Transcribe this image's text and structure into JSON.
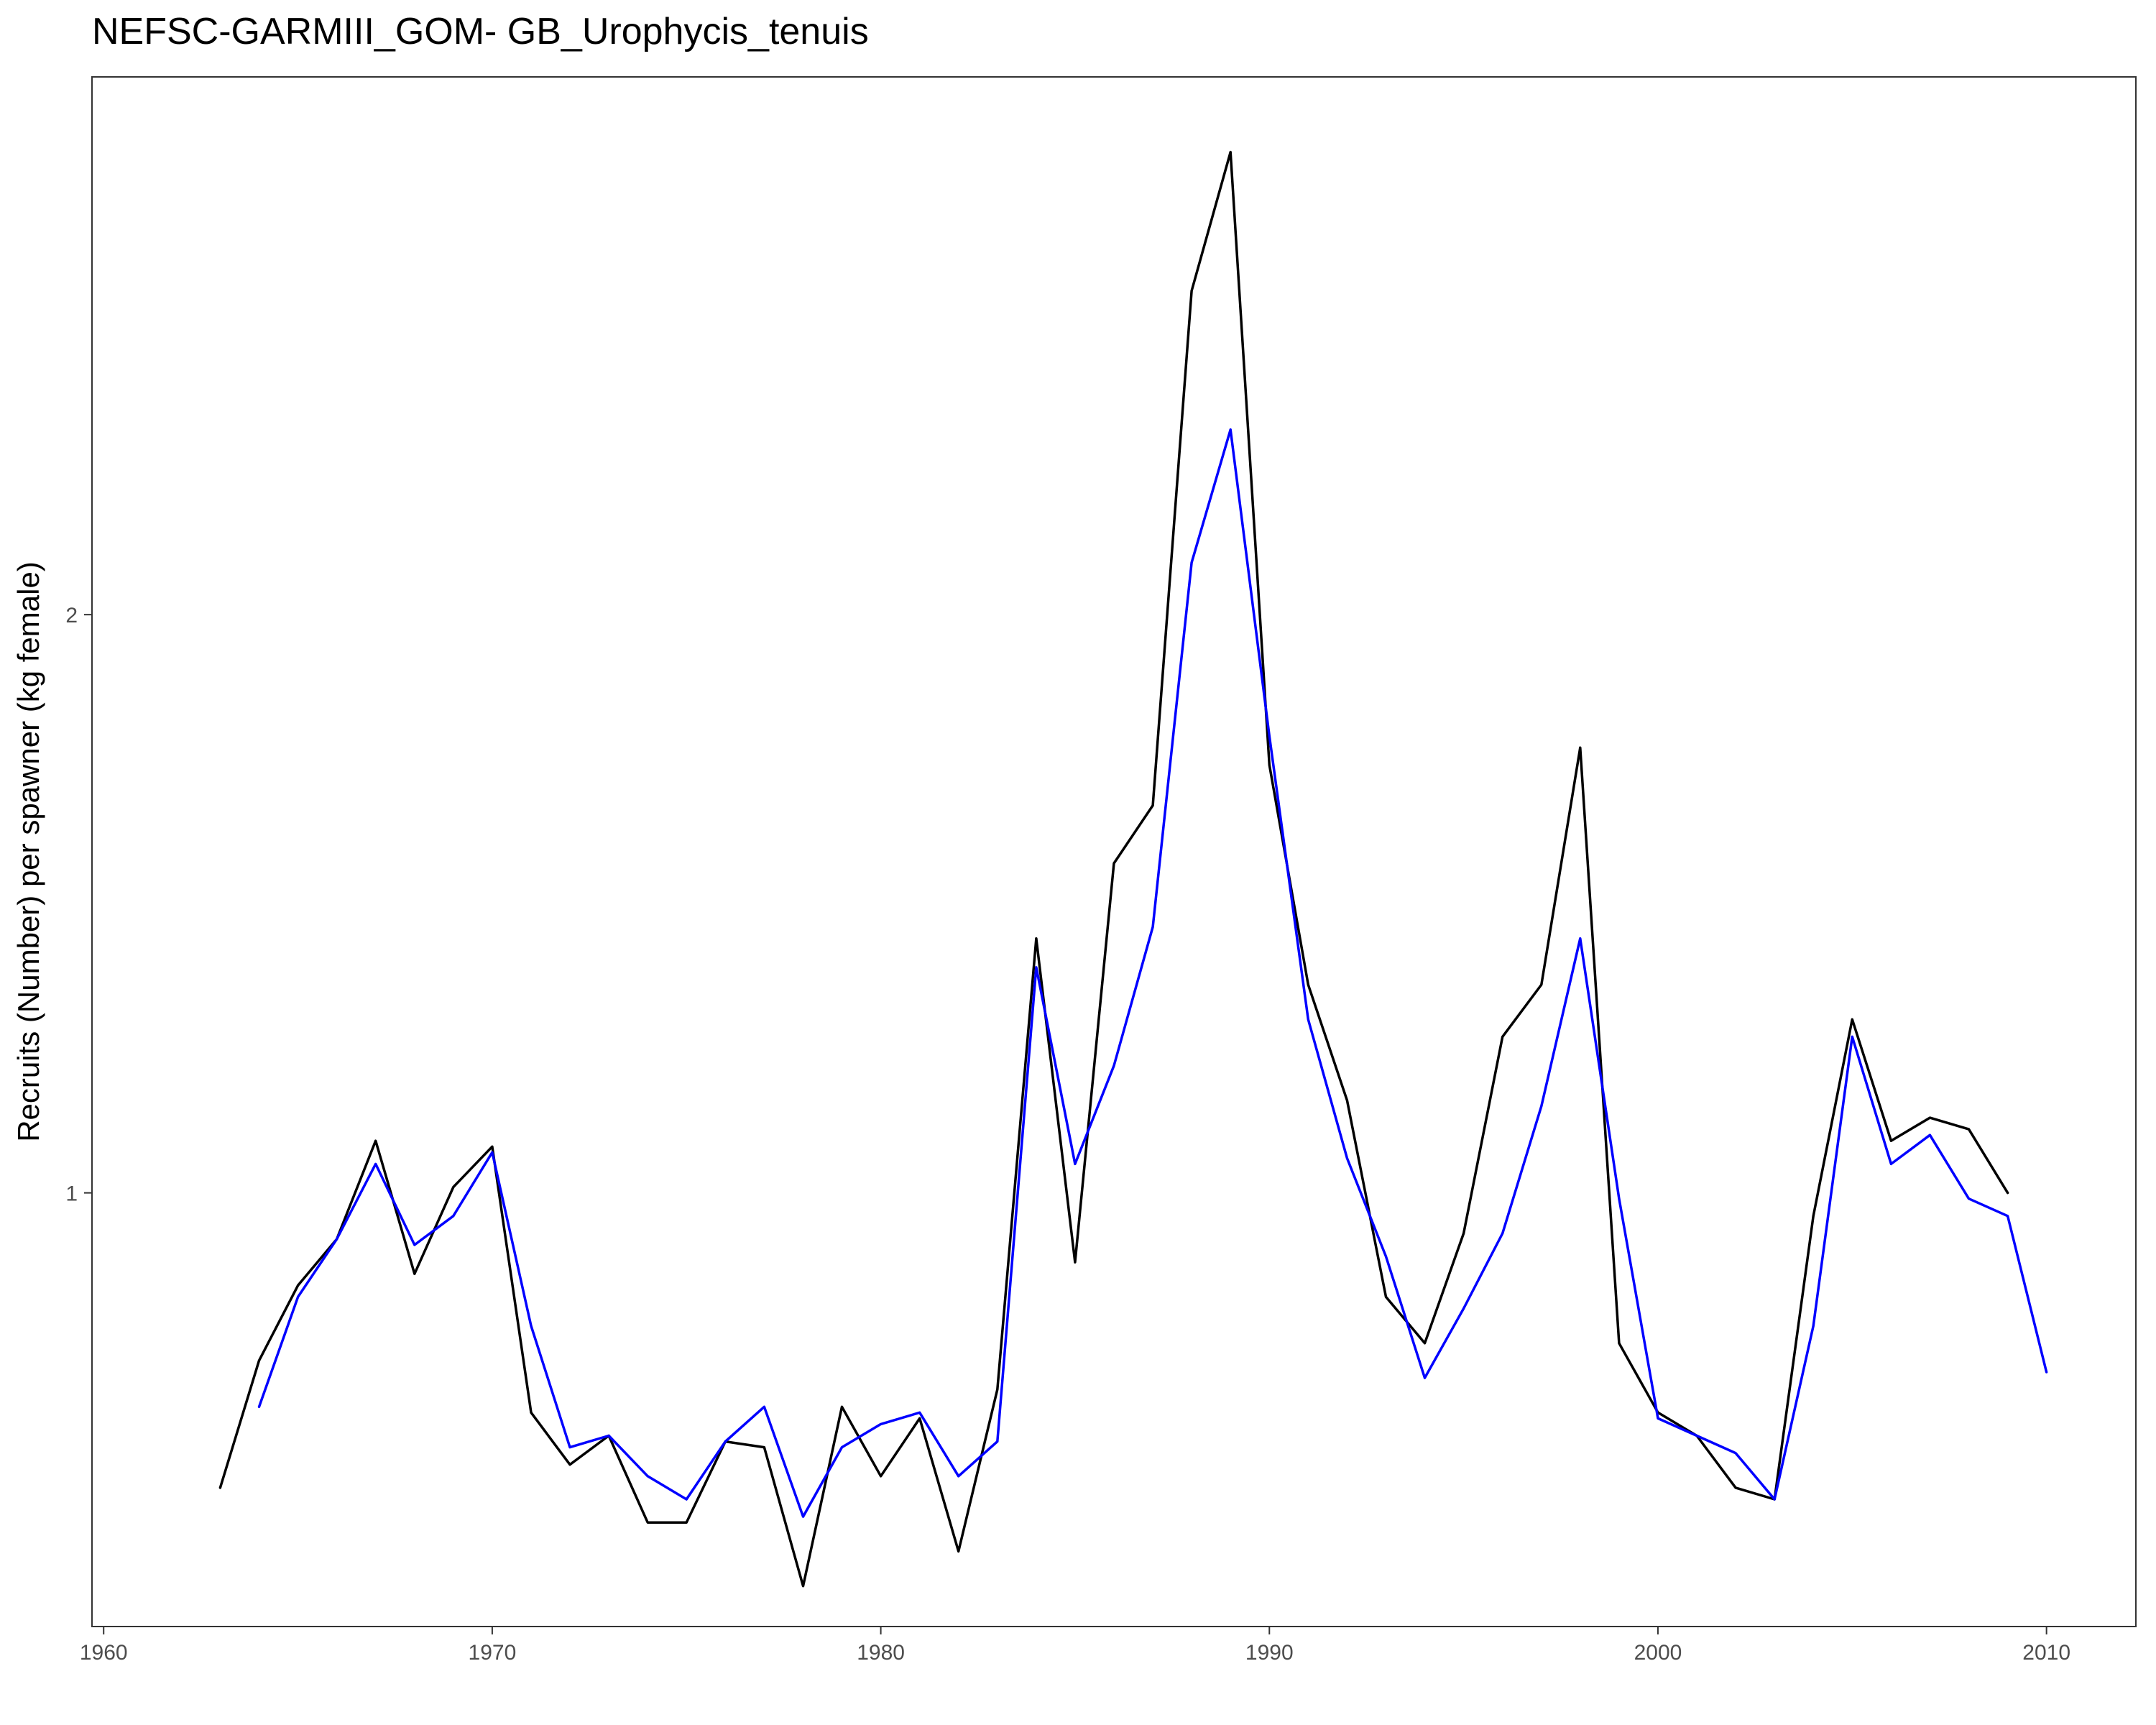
{
  "chart_data": {
    "type": "line",
    "title": "NEFSC-GARMIII_GOM- GB_Urophycis_tenuis",
    "xlabel": "",
    "ylabel": "Recruits (Number) per spawner (kg female)",
    "xlim": [
      1959.7,
      2012.3
    ],
    "ylim": [
      0.25,
      2.93
    ],
    "x_ticks": [
      1960,
      1970,
      1980,
      1990,
      2000,
      2010
    ],
    "y_ticks": [
      1,
      2
    ],
    "grid": false,
    "series": [
      {
        "color": "#000000",
        "x": [
          1963,
          1964,
          1965,
          1966,
          1967,
          1968,
          1969,
          1970,
          1971,
          1972,
          1973,
          1974,
          1975,
          1976,
          1977,
          1978,
          1979,
          1980,
          1981,
          1982,
          1983,
          1984,
          1985,
          1986,
          1987,
          1988,
          1989,
          1990,
          1991,
          1992,
          1993,
          1994,
          1995,
          1996,
          1997,
          1998,
          1999,
          2000,
          2001,
          2002,
          2003,
          2004,
          2005,
          2006,
          2007,
          2008,
          2009
        ],
        "y": [
          0.49,
          0.71,
          0.84,
          0.92,
          1.09,
          0.86,
          1.01,
          1.08,
          0.62,
          0.53,
          0.58,
          0.43,
          0.43,
          0.57,
          0.56,
          0.32,
          0.63,
          0.51,
          0.61,
          0.38,
          0.66,
          1.44,
          0.88,
          1.57,
          1.67,
          2.56,
          2.8,
          1.74,
          1.36,
          1.16,
          0.82,
          0.74,
          0.93,
          1.27,
          1.36,
          1.77,
          0.74,
          0.62,
          0.58,
          0.49,
          0.47,
          0.96,
          1.3,
          1.09,
          1.13,
          1.11,
          1.0
        ]
      },
      {
        "color": "#0000ff",
        "x": [
          1964,
          1965,
          1966,
          1967,
          1968,
          1969,
          1970,
          1971,
          1972,
          1973,
          1974,
          1975,
          1976,
          1977,
          1978,
          1979,
          1980,
          1981,
          1982,
          1983,
          1984,
          1985,
          1986,
          1987,
          1988,
          1989,
          1990,
          1991,
          1992,
          1993,
          1994,
          1995,
          1996,
          1997,
          1998,
          1999,
          2000,
          2001,
          2002,
          2003,
          2004,
          2005,
          2006,
          2007,
          2008,
          2009,
          2010
        ],
        "y": [
          0.63,
          0.82,
          0.92,
          1.05,
          0.91,
          0.96,
          1.07,
          0.77,
          0.56,
          0.58,
          0.51,
          0.47,
          0.57,
          0.63,
          0.44,
          0.56,
          0.6,
          0.62,
          0.51,
          0.57,
          1.39,
          1.05,
          1.22,
          1.46,
          2.09,
          2.32,
          1.79,
          1.3,
          1.06,
          0.89,
          0.68,
          0.8,
          0.93,
          1.15,
          1.44,
          0.99,
          0.61,
          0.58,
          0.55,
          0.47,
          0.77,
          1.27,
          1.05,
          1.1,
          0.99,
          0.96,
          0.69
        ]
      }
    ]
  }
}
